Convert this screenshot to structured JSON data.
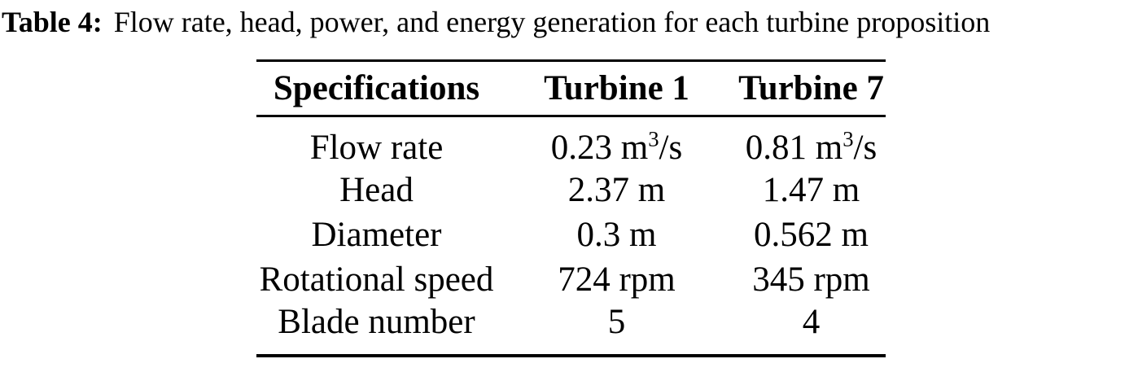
{
  "caption": {
    "label": "Table 4:",
    "text": "Flow rate, head, power, and energy generation for each turbine proposition"
  },
  "table": {
    "headers": {
      "specifications": "Specifications",
      "turbine1": "Turbine 1",
      "turbine7": "Turbine 7"
    },
    "rows": [
      {
        "label": "Flow rate",
        "t1": {
          "text": "0.23 m",
          "sup": "3",
          "after": "/s"
        },
        "t7": {
          "text": "0.81 m",
          "sup": "3",
          "after": "/s"
        }
      },
      {
        "label": "Head",
        "t1": {
          "text": "2.37 m"
        },
        "t7": {
          "text": "1.47 m"
        }
      },
      {
        "label": "Diameter",
        "t1": {
          "text": "0.3 m"
        },
        "t7": {
          "text": "0.562 m"
        }
      },
      {
        "label": "Rotational speed",
        "t1": {
          "text": "724 rpm"
        },
        "t7": {
          "text": "345 rpm"
        }
      },
      {
        "label": "Blade number",
        "t1": {
          "text": "5"
        },
        "t7": {
          "text": "4"
        }
      }
    ]
  },
  "colors": {
    "text": "#000000",
    "background": "#ffffff",
    "rule": "#000000"
  }
}
